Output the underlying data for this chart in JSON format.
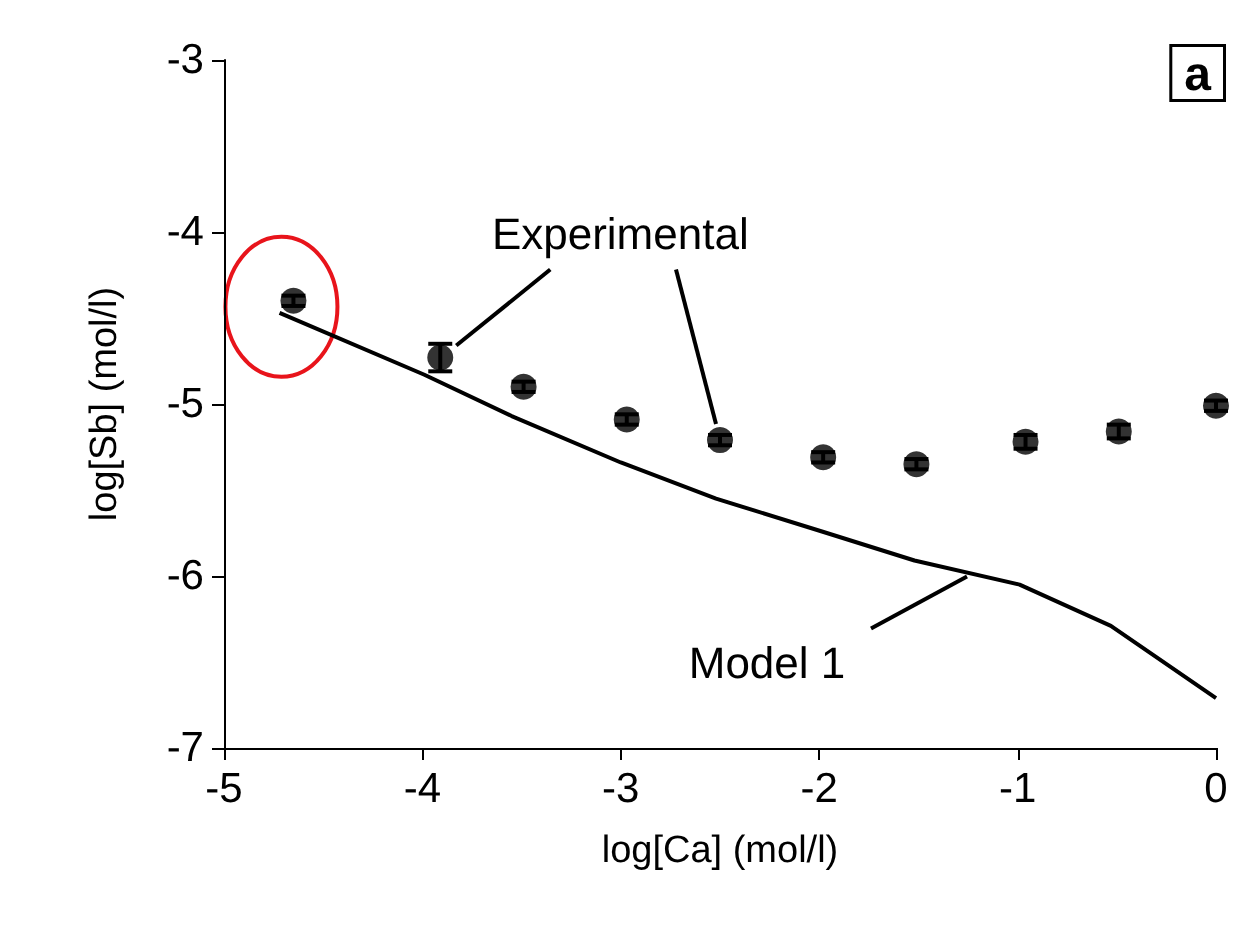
{
  "chart_data": {
    "type": "scatter",
    "xlabel": "log[Ca] (mol/l)",
    "ylabel": "log[Sb] (mol/l)",
    "xlim": [
      -5,
      0
    ],
    "xticks": [
      -5,
      -4,
      -3,
      -2,
      -1,
      0
    ],
    "ylim": [
      -7,
      -3
    ],
    "yticks": [
      -7,
      -6,
      -5,
      -4,
      -3
    ],
    "grid": false,
    "legend": false,
    "annotations": [
      "a"
    ],
    "series": [
      {
        "name": "Experimental",
        "color": "#000000",
        "marker": "circle",
        "x": [
          -4.65,
          -3.91,
          -3.49,
          -2.97,
          -2.5,
          -1.98,
          -1.51,
          -0.96,
          -0.49,
          0
        ],
        "values": [
          -4.4,
          -4.73,
          -4.9,
          -5.09,
          -5.21,
          -5.31,
          -5.35,
          -5.22,
          -5.16,
          -5.01
        ],
        "errors": [
          0.03,
          0.08,
          0.03,
          0.03,
          0.03,
          0.03,
          0.03,
          0.04,
          0.04,
          0.03
        ]
      },
      {
        "name": "Model 1",
        "type": "line",
        "color": "#000000",
        "marker": "none",
        "line_style": "solid",
        "x": [
          -4.72,
          -3.99,
          -3.55,
          -3.0,
          -2.52,
          -1.99,
          -1.52,
          -0.99,
          -0.53,
          0
        ],
        "values": [
          -4.47,
          -4.83,
          -5.07,
          -5.34,
          -5.55,
          -5.74,
          -5.91,
          -6.05,
          -6.29,
          -6.71
        ]
      }
    ]
  }
}
